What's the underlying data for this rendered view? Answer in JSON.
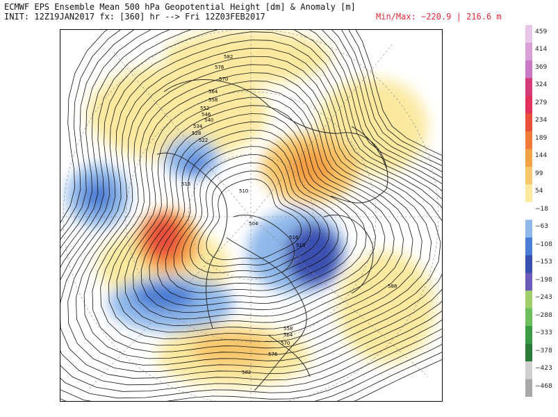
{
  "header": {
    "title": "ECMWF EPS Ensemble Mean 500 hPa Geopotential Height [dm] & Anomaly [m]",
    "init": "INIT: 12Z19JAN2017 fx: [360] hr --> Fri 12Z03FEB2017",
    "minmax": "Min/Max: −220.9 | 216.6 m"
  },
  "colorbar": {
    "labels": [
      "459",
      "414",
      "369",
      "324",
      "279",
      "234",
      "189",
      "144",
      "99",
      "54",
      "−18",
      "−63",
      "−108",
      "−153",
      "−198",
      "−243",
      "−288",
      "−333",
      "−378",
      "−423",
      "−468"
    ],
    "colors": [
      "#e8c6e8",
      "#d9a0d6",
      "#c978c6",
      "#d43c77",
      "#e0325a",
      "#e8503c",
      "#ef7a3a",
      "#f4a045",
      "#f8c66a",
      "#fbe9a0",
      "#ffffff",
      "#8fb8ea",
      "#4c7dd4",
      "#3a4fb0",
      "#6a5cb8",
      "#9fcf6a",
      "#6cbf5c",
      "#3a9a46",
      "#2a7a3a",
      "#d0d0d0",
      "#a8a8a8"
    ]
  },
  "contour_labels": [
    "582",
    "576",
    "570",
    "564",
    "558",
    "552",
    "546",
    "540",
    "534",
    "528",
    "522",
    "516",
    "510",
    "504",
    "516",
    "510",
    "588",
    "558",
    "564",
    "570",
    "576",
    "582"
  ],
  "colors": {
    "land": "#2a2a2a",
    "anomaly_warm": "#f07a3a",
    "anomaly_cold": "#3a56c4",
    "contour": "#111111"
  }
}
